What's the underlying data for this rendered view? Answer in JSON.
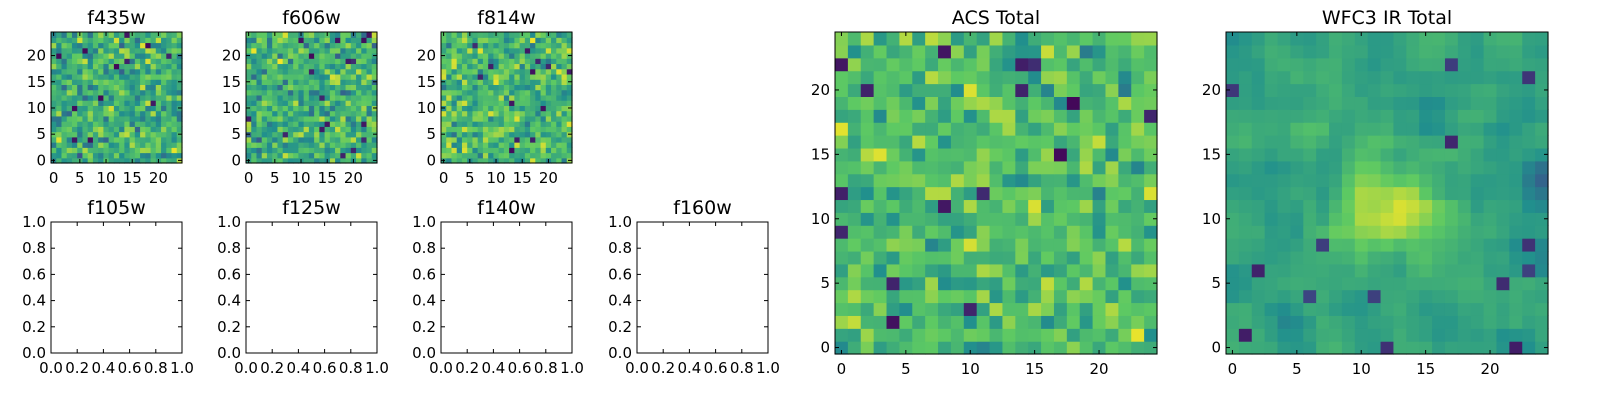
{
  "chart_data": [
    {
      "id": "f435w",
      "type": "heatmap",
      "title": "f435w",
      "colormap": "viridis",
      "size": [
        25,
        25
      ],
      "xlim": [
        -0.5,
        24.5
      ],
      "ylim": [
        -0.5,
        24.5
      ],
      "x_ticks": [
        0,
        5,
        10,
        15,
        20
      ],
      "y_ticks": [
        0,
        5,
        10,
        15,
        20
      ],
      "x_tick_labels": [
        "0",
        "5",
        "10",
        "15",
        "20"
      ],
      "y_tick_labels": [
        "0",
        "5",
        "10",
        "15",
        "20"
      ],
      "value_range": [
        0,
        1
      ],
      "mean_level": 0.62,
      "spread": 0.25,
      "blur": 0,
      "seed": 11,
      "values": null
    },
    {
      "id": "f606w",
      "type": "heatmap",
      "title": "f606w",
      "colormap": "viridis",
      "size": [
        25,
        25
      ],
      "xlim": [
        -0.5,
        24.5
      ],
      "ylim": [
        -0.5,
        24.5
      ],
      "x_ticks": [
        0,
        5,
        10,
        15,
        20
      ],
      "y_ticks": [
        0,
        5,
        10,
        15,
        20
      ],
      "x_tick_labels": [
        "0",
        "5",
        "10",
        "15",
        "20"
      ],
      "y_tick_labels": [
        "0",
        "5",
        "10",
        "15",
        "20"
      ],
      "value_range": [
        0,
        1
      ],
      "mean_level": 0.64,
      "spread": 0.24,
      "blur": 0,
      "seed": 23,
      "values": null
    },
    {
      "id": "f814w",
      "type": "heatmap",
      "title": "f814w",
      "colormap": "viridis",
      "size": [
        25,
        25
      ],
      "xlim": [
        -0.5,
        24.5
      ],
      "ylim": [
        -0.5,
        24.5
      ],
      "x_ticks": [
        0,
        5,
        10,
        15,
        20
      ],
      "y_ticks": [
        0,
        5,
        10,
        15,
        20
      ],
      "x_tick_labels": [
        "0",
        "5",
        "10",
        "15",
        "20"
      ],
      "y_tick_labels": [
        "0",
        "5",
        "10",
        "15",
        "20"
      ],
      "value_range": [
        0,
        1
      ],
      "mean_level": 0.68,
      "spread": 0.23,
      "blur": 0,
      "seed": 37,
      "values": null
    },
    {
      "id": "f105w",
      "type": "empty",
      "title": "f105w",
      "xlim": [
        0,
        1
      ],
      "ylim": [
        0,
        1
      ],
      "x_ticks": [
        0,
        0.2,
        0.4,
        0.6,
        0.8,
        1.0
      ],
      "y_ticks": [
        0,
        0.2,
        0.4,
        0.6,
        0.8,
        1.0
      ],
      "x_tick_labels": [
        "0.0",
        "0.2",
        "0.4",
        "0.6",
        "0.8",
        "1.0"
      ],
      "y_tick_labels": [
        "0.0",
        "0.2",
        "0.4",
        "0.6",
        "0.8",
        "1.0"
      ]
    },
    {
      "id": "f125w",
      "type": "empty",
      "title": "f125w",
      "xlim": [
        0,
        1
      ],
      "ylim": [
        0,
        1
      ],
      "x_ticks": [
        0,
        0.2,
        0.4,
        0.6,
        0.8,
        1.0
      ],
      "y_ticks": [
        0,
        0.2,
        0.4,
        0.6,
        0.8,
        1.0
      ],
      "x_tick_labels": [
        "0.0",
        "0.2",
        "0.4",
        "0.6",
        "0.8",
        "1.0"
      ],
      "y_tick_labels": [
        "0.0",
        "0.2",
        "0.4",
        "0.6",
        "0.8",
        "1.0"
      ]
    },
    {
      "id": "f140w",
      "type": "empty",
      "title": "f140w",
      "xlim": [
        0,
        1
      ],
      "ylim": [
        0,
        1
      ],
      "x_ticks": [
        0,
        0.2,
        0.4,
        0.6,
        0.8,
        1.0
      ],
      "y_ticks": [
        0,
        0.2,
        0.4,
        0.6,
        0.8,
        1.0
      ],
      "x_tick_labels": [
        "0.0",
        "0.2",
        "0.4",
        "0.6",
        "0.8",
        "1.0"
      ],
      "y_tick_labels": [
        "0.0",
        "0.2",
        "0.4",
        "0.6",
        "0.8",
        "1.0"
      ]
    },
    {
      "id": "f160w",
      "type": "empty",
      "title": "f160w",
      "xlim": [
        0,
        1
      ],
      "ylim": [
        0,
        1
      ],
      "x_ticks": [
        0,
        0.2,
        0.4,
        0.6,
        0.8,
        1.0
      ],
      "y_ticks": [
        0,
        0.2,
        0.4,
        0.6,
        0.8,
        1.0
      ],
      "x_tick_labels": [
        "0.0",
        "0.2",
        "0.4",
        "0.6",
        "0.8",
        "1.0"
      ],
      "y_tick_labels": [
        "0.0",
        "0.2",
        "0.4",
        "0.6",
        "0.8",
        "1.0"
      ]
    },
    {
      "id": "acs-total",
      "type": "heatmap",
      "title": "ACS Total",
      "colormap": "viridis",
      "size": [
        25,
        25
      ],
      "xlim": [
        -0.5,
        24.5
      ],
      "ylim": [
        -0.5,
        24.5
      ],
      "x_ticks": [
        0,
        5,
        10,
        15,
        20
      ],
      "y_ticks": [
        0,
        5,
        10,
        15,
        20
      ],
      "x_tick_labels": [
        "0",
        "5",
        "10",
        "15",
        "20"
      ],
      "y_tick_labels": [
        "0",
        "5",
        "10",
        "15",
        "20"
      ],
      "value_range": [
        0,
        1
      ],
      "mean_level": 0.7,
      "spread": 0.2,
      "blur": 0,
      "seed": 53,
      "values": null
    },
    {
      "id": "wfc3-ir-total",
      "type": "heatmap",
      "title": "WFC3 IR Total",
      "colormap": "viridis",
      "size": [
        25,
        25
      ],
      "xlim": [
        -0.5,
        24.5
      ],
      "ylim": [
        -0.5,
        24.5
      ],
      "x_ticks": [
        0,
        5,
        10,
        15,
        20
      ],
      "y_ticks": [
        0,
        5,
        10,
        15,
        20
      ],
      "x_tick_labels": [
        "0",
        "5",
        "10",
        "15",
        "20"
      ],
      "y_tick_labels": [
        "0",
        "5",
        "10",
        "15",
        "20"
      ],
      "value_range": [
        0,
        1
      ],
      "mean_level": 0.58,
      "spread": 0.2,
      "blur": 1,
      "seed": 71,
      "bright_center": [
        12,
        11
      ],
      "values": null
    }
  ],
  "colors": {
    "viridis": [
      "#440154",
      "#3b528b",
      "#21908d",
      "#5dc963",
      "#fde725"
    ],
    "axes": "#000000",
    "background": "#ffffff"
  }
}
